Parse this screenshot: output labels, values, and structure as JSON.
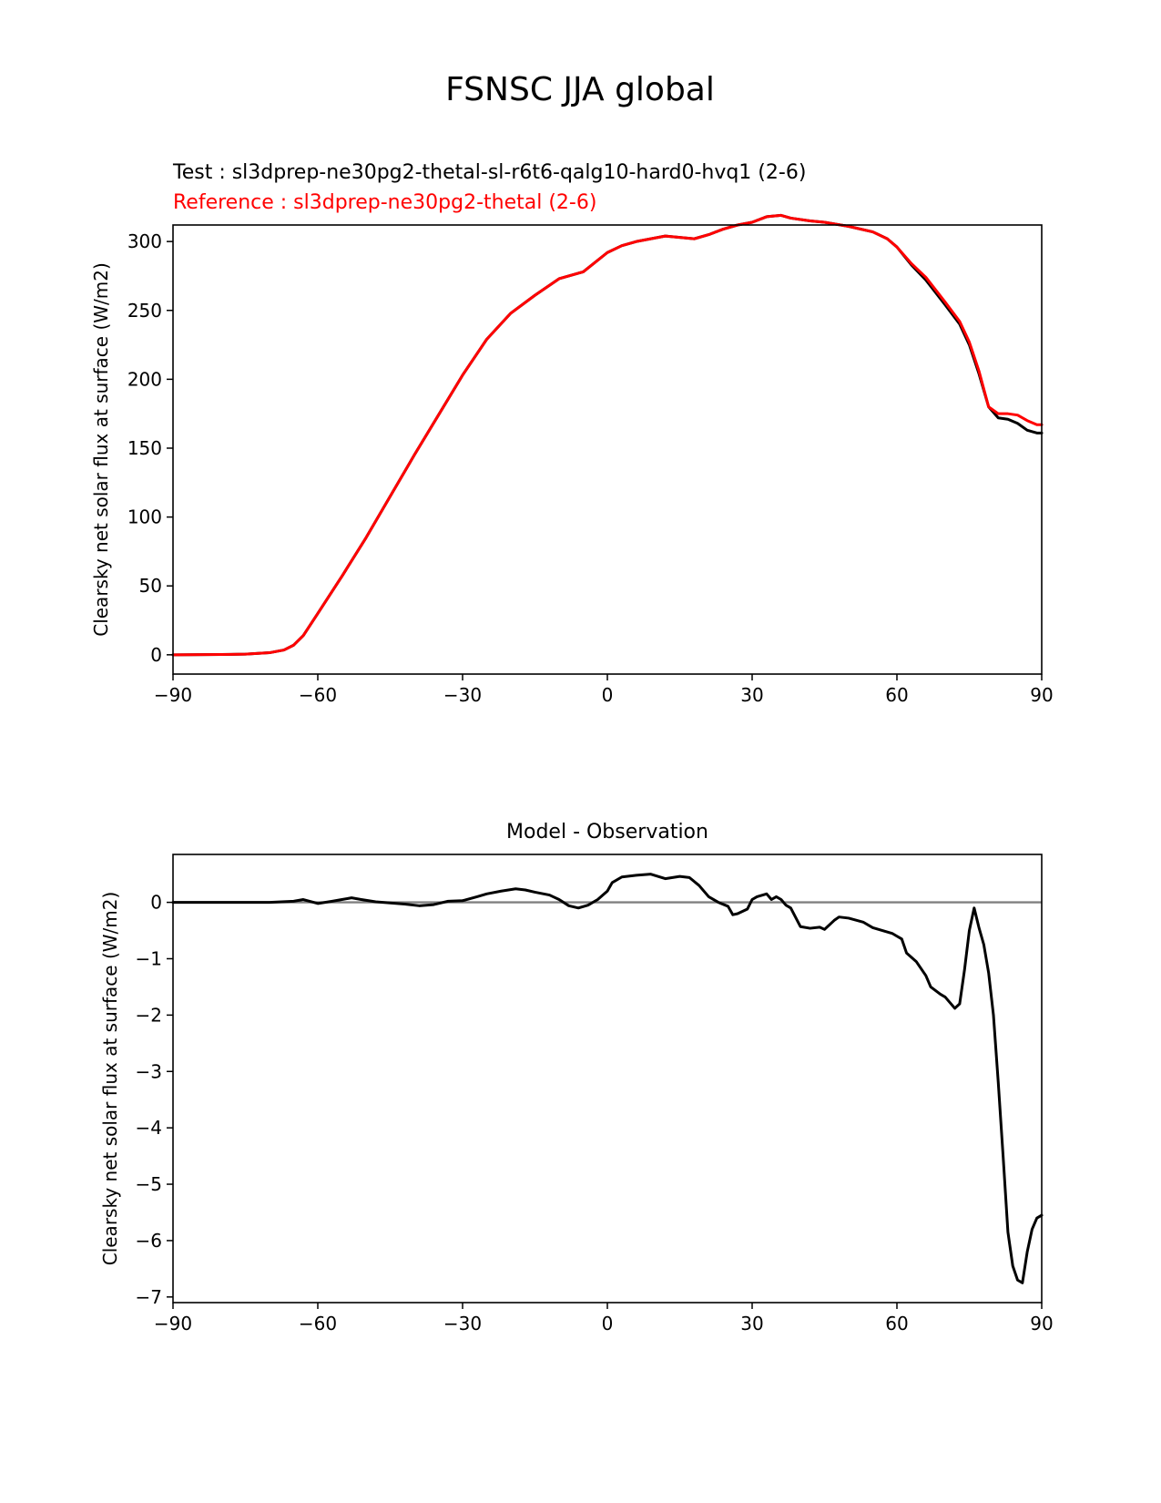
{
  "figure": {
    "suptitle": "FSNSC JJA global",
    "test_label": "Test : sl3dprep-ne30pg2-thetal-sl-r6t6-qalg10-hard0-hvq1 (2-6)",
    "reference_label": "Reference : sl3dprep-ne30pg2-thetal (2-6)",
    "colors": {
      "test": "#000000",
      "reference": "#ff0000",
      "zero_line": "#808080"
    }
  },
  "chart_data": [
    {
      "type": "line",
      "title": "",
      "ylabel": "Clearsky net solar flux at surface (W/m2)",
      "xlabel": "",
      "xlim": [
        -90,
        90
      ],
      "ylim": [
        -14,
        312
      ],
      "xticks": [
        -90,
        -60,
        -30,
        0,
        30,
        60,
        90
      ],
      "xtick_labels": [
        "−90",
        "−60",
        "−30",
        "0",
        "30",
        "60",
        "90"
      ],
      "yticks": [
        0,
        50,
        100,
        150,
        200,
        250,
        300
      ],
      "ytick_labels": [
        "0",
        "50",
        "100",
        "150",
        "200",
        "250",
        "300"
      ],
      "grid": false,
      "series": [
        {
          "role": "test",
          "color": "#000000",
          "x": [
            -90,
            -80,
            -75,
            -70,
            -67,
            -65,
            -63,
            -60,
            -55,
            -50,
            -45,
            -40,
            -35,
            -30,
            -25,
            -20,
            -15,
            -10,
            -5,
            0,
            3,
            6,
            9,
            12,
            15,
            18,
            21,
            24,
            27,
            30,
            33,
            36,
            38,
            42,
            45,
            50,
            55,
            58,
            60,
            63,
            66,
            70,
            73,
            75,
            77,
            79,
            81,
            83,
            85,
            87,
            89,
            90
          ],
          "y": [
            0,
            0.2,
            0.5,
            1.5,
            3.5,
            7,
            14,
            30,
            57,
            85,
            115,
            145,
            174,
            203,
            229,
            248,
            261,
            273,
            278,
            292,
            297,
            300,
            302,
            304,
            303,
            302,
            305,
            309,
            312,
            314,
            318,
            319,
            317,
            315,
            314,
            311,
            307,
            302,
            296,
            283,
            272,
            254,
            240,
            225,
            204,
            180,
            172,
            171,
            168,
            163,
            161,
            161
          ]
        },
        {
          "role": "reference",
          "color": "#ff0000",
          "x": [
            -90,
            -80,
            -75,
            -70,
            -67,
            -65,
            -63,
            -60,
            -55,
            -50,
            -45,
            -40,
            -35,
            -30,
            -25,
            -20,
            -15,
            -10,
            -5,
            0,
            3,
            6,
            9,
            12,
            15,
            18,
            21,
            24,
            27,
            30,
            33,
            36,
            38,
            42,
            45,
            50,
            55,
            58,
            60,
            63,
            66,
            70,
            73,
            75,
            77,
            79,
            81,
            83,
            85,
            87,
            89,
            90
          ],
          "y": [
            0,
            0.2,
            0.5,
            1.5,
            3.5,
            7,
            14,
            30,
            57,
            85,
            115,
            145,
            174,
            203,
            229,
            248,
            261,
            273,
            278,
            292,
            297,
            300,
            302,
            304,
            303,
            302,
            305,
            309,
            312,
            314,
            318,
            319,
            317,
            315,
            314,
            311,
            307,
            302,
            296,
            284,
            274,
            256,
            242,
            227,
            206,
            180,
            175,
            175,
            174,
            170,
            167,
            167
          ]
        }
      ]
    },
    {
      "type": "line",
      "title": "Model - Observation",
      "ylabel": "Clearsky net solar flux at surface (W/m2)",
      "xlabel": "",
      "xlim": [
        -90,
        90
      ],
      "ylim": [
        -7.1,
        0.85
      ],
      "xticks": [
        -90,
        -60,
        -30,
        0,
        30,
        60,
        90
      ],
      "xtick_labels": [
        "−90",
        "−60",
        "−30",
        "0",
        "30",
        "60",
        "90"
      ],
      "yticks": [
        0,
        -1,
        -2,
        -3,
        -4,
        -5,
        -6,
        -7
      ],
      "ytick_labels": [
        "0",
        "−1",
        "−2",
        "−3",
        "−4",
        "−5",
        "−6",
        "−7"
      ],
      "grid": false,
      "zero_line": 0,
      "series": [
        {
          "role": "difference",
          "color": "#000000",
          "x": [
            -90,
            -80,
            -70,
            -65,
            -63,
            -60,
            -57,
            -55,
            -53,
            -51,
            -48,
            -45,
            -42,
            -39,
            -36,
            -33,
            -30,
            -27,
            -25,
            -22,
            -19,
            -17,
            -15,
            -12,
            -10,
            -8,
            -6,
            -4,
            -2,
            0,
            1,
            3,
            6,
            9,
            12,
            15,
            17,
            19,
            21,
            23,
            25,
            26,
            27,
            29,
            30,
            31,
            33,
            34,
            35,
            36,
            37,
            38,
            40,
            42,
            44,
            45,
            47,
            48,
            50,
            53,
            55,
            57,
            59,
            60,
            61,
            62,
            64,
            66,
            67,
            69,
            70,
            72,
            73,
            74,
            75,
            76,
            77,
            78,
            79,
            80,
            81,
            82,
            83,
            84,
            85,
            86,
            87,
            88,
            89,
            90
          ],
          "y": [
            0,
            0,
            0,
            0.02,
            0.05,
            -0.02,
            0.02,
            0.05,
            0.08,
            0.05,
            0.01,
            -0.01,
            -0.03,
            -0.06,
            -0.04,
            0.02,
            0.03,
            0.1,
            0.15,
            0.2,
            0.24,
            0.22,
            0.18,
            0.13,
            0.05,
            -0.06,
            -0.1,
            -0.05,
            0.05,
            0.2,
            0.35,
            0.45,
            0.48,
            0.5,
            0.42,
            0.46,
            0.44,
            0.3,
            0.1,
            0.0,
            -0.07,
            -0.22,
            -0.2,
            -0.12,
            0.05,
            0.1,
            0.15,
            0.05,
            0.1,
            0.05,
            -0.05,
            -0.1,
            -0.43,
            -0.46,
            -0.44,
            -0.48,
            -0.32,
            -0.26,
            -0.28,
            -0.35,
            -0.45,
            -0.5,
            -0.55,
            -0.6,
            -0.65,
            -0.9,
            -1.05,
            -1.3,
            -1.5,
            -1.63,
            -1.68,
            -1.88,
            -1.8,
            -1.2,
            -0.5,
            -0.1,
            -0.45,
            -0.75,
            -1.25,
            -2.0,
            -3.2,
            -4.5,
            -5.85,
            -6.45,
            -6.7,
            -6.75,
            -6.2,
            -5.8,
            -5.6,
            -5.55
          ]
        }
      ]
    }
  ]
}
